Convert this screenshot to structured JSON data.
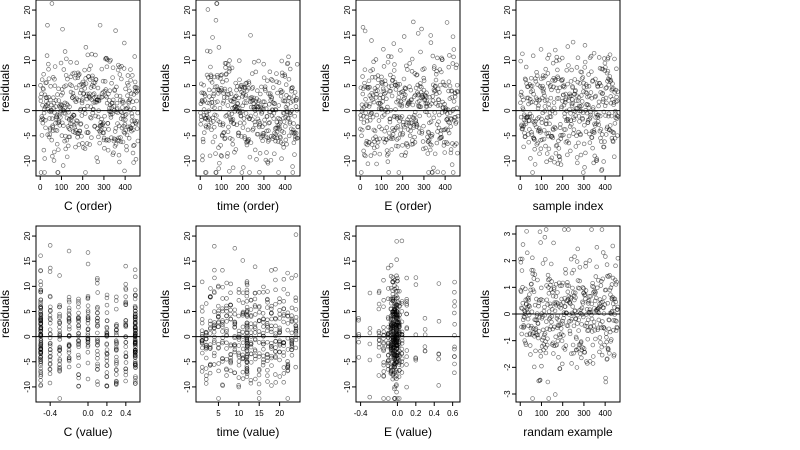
{
  "figure": {
    "layout": "2 rows x 4 columns of scatter plots",
    "background": "#ffffff",
    "point_color": "#000000"
  },
  "chart_data": [
    {
      "type": "scatter",
      "title": "",
      "xlabel": "C (order)",
      "ylabel": "residuals",
      "xlim": [
        -20,
        470
      ],
      "ylim": [
        -13,
        22
      ],
      "xticks": [
        0,
        100,
        200,
        300,
        400
      ],
      "yticks": [
        -10,
        -5,
        0,
        5,
        10,
        15,
        20
      ],
      "hline": 0,
      "grid": false,
      "n_points": 460,
      "x_kind": "order",
      "x_range": [
        1,
        460
      ],
      "y_mean": 0,
      "y_sd": 5.2
    },
    {
      "type": "scatter",
      "title": "",
      "xlabel": "time (order)",
      "ylabel": "residuals",
      "xlim": [
        -20,
        470
      ],
      "ylim": [
        -13,
        22
      ],
      "xticks": [
        0,
        100,
        200,
        300,
        400
      ],
      "yticks": [
        -10,
        -5,
        0,
        5,
        10,
        15,
        20
      ],
      "hline": 0,
      "grid": false,
      "n_points": 460,
      "x_kind": "order",
      "x_range": [
        1,
        460
      ],
      "y_mean": 0,
      "y_sd": 5.2
    },
    {
      "type": "scatter",
      "title": "",
      "xlabel": "E (order)",
      "ylabel": "residuals",
      "xlim": [
        -20,
        470
      ],
      "ylim": [
        -13,
        22
      ],
      "xticks": [
        0,
        100,
        200,
        300,
        400
      ],
      "yticks": [
        -10,
        -5,
        0,
        5,
        10,
        15,
        20
      ],
      "hline": 0,
      "grid": false,
      "n_points": 460,
      "x_kind": "order",
      "x_range": [
        1,
        460
      ],
      "y_mean": 0,
      "y_sd": 5.2
    },
    {
      "type": "scatter",
      "title": "",
      "xlabel": "sample index",
      "ylabel": "residuals",
      "xlim": [
        -20,
        470
      ],
      "ylim": [
        -13,
        22
      ],
      "xticks": [
        0,
        100,
        200,
        300,
        400
      ],
      "yticks": [
        -10,
        -5,
        0,
        5,
        10,
        15,
        20
      ],
      "hline": 0,
      "grid": false,
      "n_points": 460,
      "x_kind": "order",
      "x_range": [
        1,
        460
      ],
      "y_mean": 0,
      "y_sd": 5.2
    },
    {
      "type": "scatter",
      "title": "",
      "xlabel": "C (value)",
      "ylabel": "residuals",
      "xlim": [
        -0.55,
        0.55
      ],
      "ylim": [
        -13,
        22
      ],
      "xticks": [
        -0.4,
        0.0,
        0.2,
        0.4
      ],
      "xtick_labels": [
        "-0.4",
        "0.0",
        "0.2",
        "0.4"
      ],
      "yticks": [
        -10,
        -5,
        0,
        5,
        10,
        15,
        20
      ],
      "hline": 0,
      "grid": false,
      "n_points": 460,
      "x_kind": "columns",
      "x_columns": [
        -0.5,
        -0.4,
        -0.3,
        -0.2,
        -0.1,
        0.0,
        0.1,
        0.2,
        0.3,
        0.4,
        0.5
      ],
      "column_weights": [
        3,
        1,
        1,
        1,
        1,
        1,
        1,
        1,
        1,
        1,
        3
      ],
      "y_mean": 0,
      "y_sd": 5.2
    },
    {
      "type": "scatter",
      "title": "",
      "xlabel": "time (value)",
      "ylabel": "residuals",
      "xlim": [
        -0.5,
        25
      ],
      "ylim": [
        -13,
        22
      ],
      "xticks": [
        5,
        10,
        15,
        20
      ],
      "yticks": [
        -10,
        -5,
        0,
        5,
        10,
        15,
        20
      ],
      "hline": 0,
      "grid": false,
      "n_points": 460,
      "x_kind": "columns",
      "x_columns": [
        1,
        2,
        3,
        4,
        5,
        6,
        7,
        8,
        9,
        10,
        11,
        12,
        13,
        14,
        15,
        16,
        17,
        18,
        19,
        20,
        21,
        22,
        23,
        24
      ],
      "column_weights": [
        1,
        1,
        1,
        1,
        1,
        1,
        1,
        1,
        1,
        1,
        1,
        3,
        1,
        1,
        1,
        1,
        1,
        1,
        1,
        1,
        1,
        1,
        1,
        1
      ],
      "y_mean": 0,
      "y_sd": 5.2
    },
    {
      "type": "scatter",
      "title": "",
      "xlabel": "E (value)",
      "ylabel": "residuals",
      "xlim": [
        -0.45,
        0.68
      ],
      "ylim": [
        -13,
        22
      ],
      "xticks": [
        -0.4,
        0.0,
        0.2,
        0.4,
        0.6
      ],
      "xtick_labels": [
        "-0.4",
        "0.0",
        "0.2",
        "0.4",
        "0.6"
      ],
      "yticks": [
        -10,
        -5,
        0,
        5,
        10,
        15,
        20
      ],
      "hline": 0,
      "grid": false,
      "n_points": 460,
      "x_kind": "columns",
      "x_columns": [
        -0.42,
        -0.3,
        -0.2,
        -0.15,
        -0.1,
        -0.07,
        -0.05,
        -0.03,
        -0.01,
        0.0,
        0.02,
        0.05,
        0.1,
        0.2,
        0.3,
        0.45,
        0.62
      ],
      "column_weights": [
        1,
        1,
        2,
        3,
        4,
        6,
        10,
        12,
        10,
        8,
        5,
        3,
        2,
        1,
        1,
        1,
        2
      ],
      "y_mean": 0,
      "y_sd": 5.2
    },
    {
      "type": "scatter",
      "title": "",
      "xlabel": "randam example",
      "ylabel": "residuals",
      "xlim": [
        -20,
        470
      ],
      "ylim": [
        -3.3,
        3.3
      ],
      "xticks": [
        0,
        100,
        200,
        300,
        400
      ],
      "yticks": [
        -3,
        -2,
        -1,
        0,
        1,
        2,
        3
      ],
      "hline": 0,
      "grid": false,
      "n_points": 460,
      "x_kind": "order",
      "x_range": [
        1,
        460
      ],
      "y_mean": 0,
      "y_sd": 1.0
    }
  ]
}
